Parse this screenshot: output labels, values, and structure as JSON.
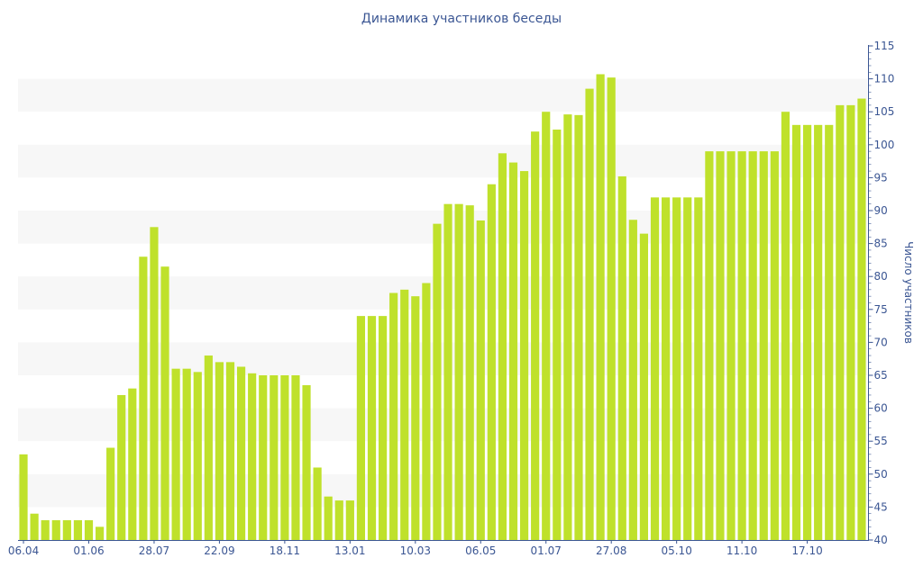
{
  "chart_data": {
    "type": "bar",
    "title": "Динамика участников беседы",
    "ylabel": "Число участников",
    "xlabel": "",
    "ylim": [
      40,
      115
    ],
    "y_ticks": [
      40,
      45,
      50,
      55,
      60,
      65,
      70,
      75,
      80,
      85,
      90,
      95,
      100,
      105,
      110,
      115
    ],
    "x_tick_labels": [
      {
        "index": 0,
        "label": "06.04"
      },
      {
        "index": 6,
        "label": "01.06"
      },
      {
        "index": 12,
        "label": "28.07"
      },
      {
        "index": 18,
        "label": "22.09"
      },
      {
        "index": 24,
        "label": "18.11"
      },
      {
        "index": 30,
        "label": "13.01"
      },
      {
        "index": 36,
        "label": "10.03"
      },
      {
        "index": 42,
        "label": "06.05"
      },
      {
        "index": 48,
        "label": "01.07"
      },
      {
        "index": 54,
        "label": "27.08"
      },
      {
        "index": 60,
        "label": "05.10"
      },
      {
        "index": 66,
        "label": "11.10"
      },
      {
        "index": 72,
        "label": "17.10"
      }
    ],
    "values": [
      53,
      44,
      43,
      43,
      43,
      43,
      43,
      42,
      54,
      62,
      63,
      83,
      87.5,
      81.5,
      66,
      66,
      65.5,
      68,
      67,
      67,
      66.3,
      65.3,
      65,
      65,
      65,
      65,
      63.5,
      51,
      46.6,
      46,
      46,
      74,
      74,
      74,
      77.5,
      78,
      77,
      79,
      88,
      91,
      91,
      90.8,
      88.5,
      94,
      98.7,
      97.3,
      96,
      102,
      105,
      102.3,
      104.6,
      104.5,
      108.5,
      110.7,
      110.2,
      95.2,
      88.6,
      86.5,
      92,
      92,
      92,
      92,
      92,
      99,
      99,
      99,
      99,
      99,
      99,
      99,
      105,
      103,
      103,
      103,
      103,
      106,
      106,
      107
    ],
    "bar_color": "#bfe12b",
    "band_color": "#f7f7f7",
    "axis_color": "#3b5693",
    "grid": "alternating-bands",
    "legend": "none"
  }
}
